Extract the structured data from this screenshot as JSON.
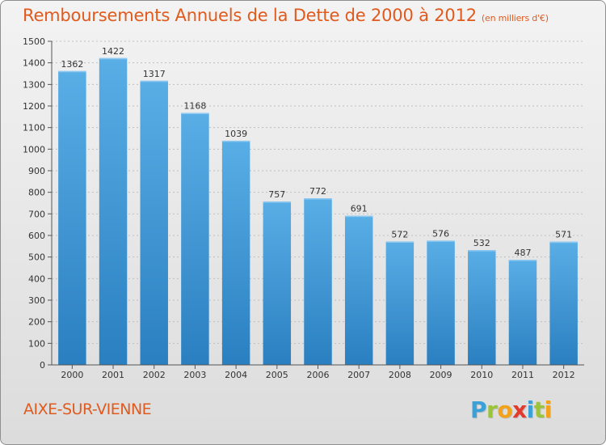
{
  "title": "Remboursements Annuels de la Dette de 2000 à 2012",
  "title_unit": "(en milliers d'€)",
  "place_label": "AIXE-SUR-VIENNE",
  "logo": {
    "text": "Proxiti",
    "letters": [
      {
        "ch": "P",
        "color": "#3aa0d8"
      },
      {
        "ch": "r",
        "color": "#9bc43c"
      },
      {
        "ch": "o",
        "color": "#f2a21b"
      },
      {
        "ch": "x",
        "color": "#e23a2e"
      },
      {
        "ch": "i",
        "color": "#3aa0d8"
      },
      {
        "ch": "t",
        "color": "#9bc43c"
      },
      {
        "ch": "i",
        "color": "#f2a21b"
      }
    ]
  },
  "colors": {
    "title": "#e05a1e",
    "bar_top": "#5aaee6",
    "bar_bottom": "#2a7fc0",
    "grid": "#bfbfbf",
    "axis_text": "#333333"
  },
  "chart_data": {
    "type": "bar",
    "title": "Remboursements Annuels de la Dette de 2000 à 2012",
    "categories": [
      "2000",
      "2001",
      "2002",
      "2003",
      "2004",
      "2005",
      "2006",
      "2007",
      "2008",
      "2009",
      "2010",
      "2011",
      "2012"
    ],
    "values": [
      1362,
      1422,
      1317,
      1168,
      1039,
      757,
      772,
      691,
      572,
      576,
      532,
      487,
      571
    ],
    "ylim": [
      0,
      1500
    ],
    "yticks": [
      0,
      100,
      200,
      300,
      400,
      500,
      600,
      700,
      800,
      900,
      1000,
      1100,
      1200,
      1300,
      1400,
      1500
    ],
    "grid": true,
    "xlabel": "",
    "ylabel": ""
  }
}
